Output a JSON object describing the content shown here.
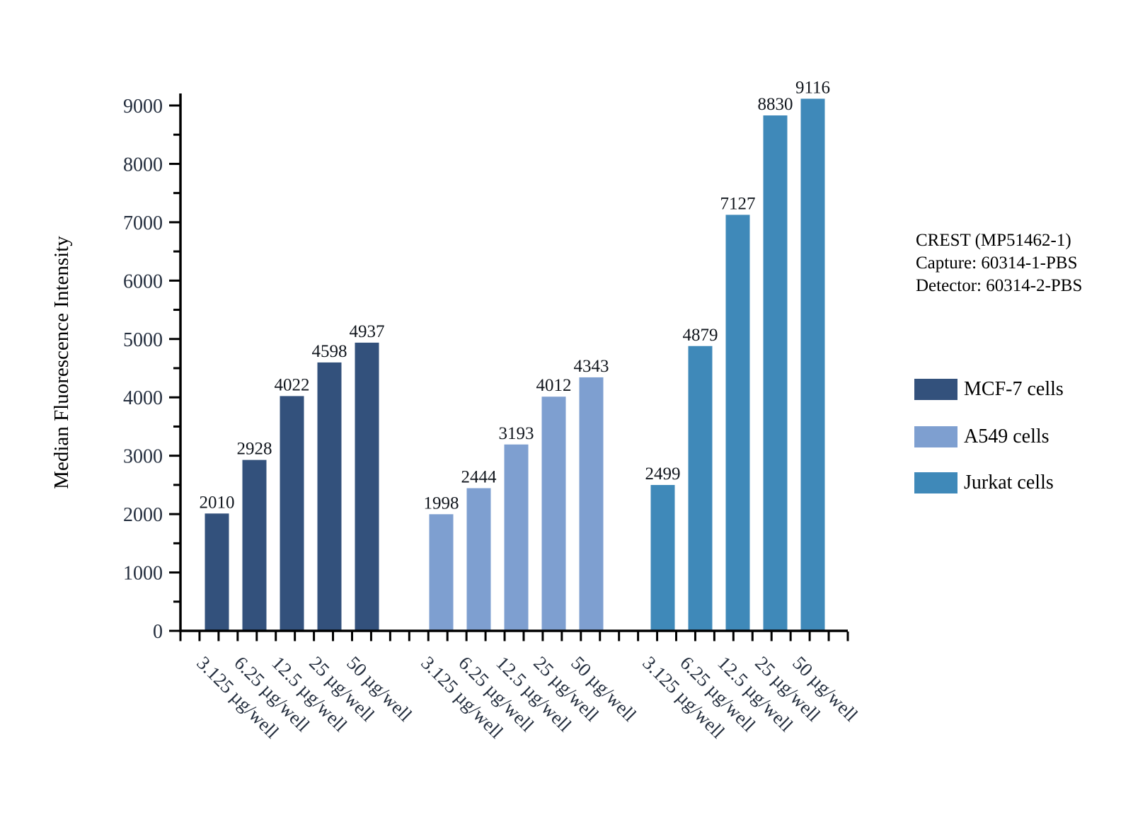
{
  "chart_data": {
    "type": "bar",
    "title": "",
    "xlabel": "",
    "ylabel": "Median Fluorescence Intensity",
    "ylim": [
      0,
      9000
    ],
    "y_major_step": 1000,
    "y_minor_step": 500,
    "grid": false,
    "legend_position": "right",
    "bar_value_labels_shown": true,
    "categories": [
      "3.125 µg/well",
      "6.25 µg/well",
      "12.5 µg/well",
      "25 µg/well",
      "50 µg/well"
    ],
    "series": [
      {
        "name": "MCF-7 cells",
        "color": "#33517c",
        "values": [
          2010,
          2928,
          4022,
          4598,
          4937
        ]
      },
      {
        "name": "A549 cells",
        "color": "#7e9fd0",
        "values": [
          1998,
          2444,
          3193,
          4012,
          4343
        ]
      },
      {
        "name": "Jurkat cells",
        "color": "#3f89b9",
        "values": [
          2499,
          4879,
          7127,
          8830,
          9116
        ]
      }
    ],
    "annotations": [
      "CREST (MP51462-1)",
      "Capture: 60314-1-PBS",
      "Detector: 60314-2-PBS"
    ],
    "colors": {
      "axis": "#000000",
      "tick_label": "#242e3e",
      "value_label": "#10151c",
      "text": "#000000"
    }
  }
}
